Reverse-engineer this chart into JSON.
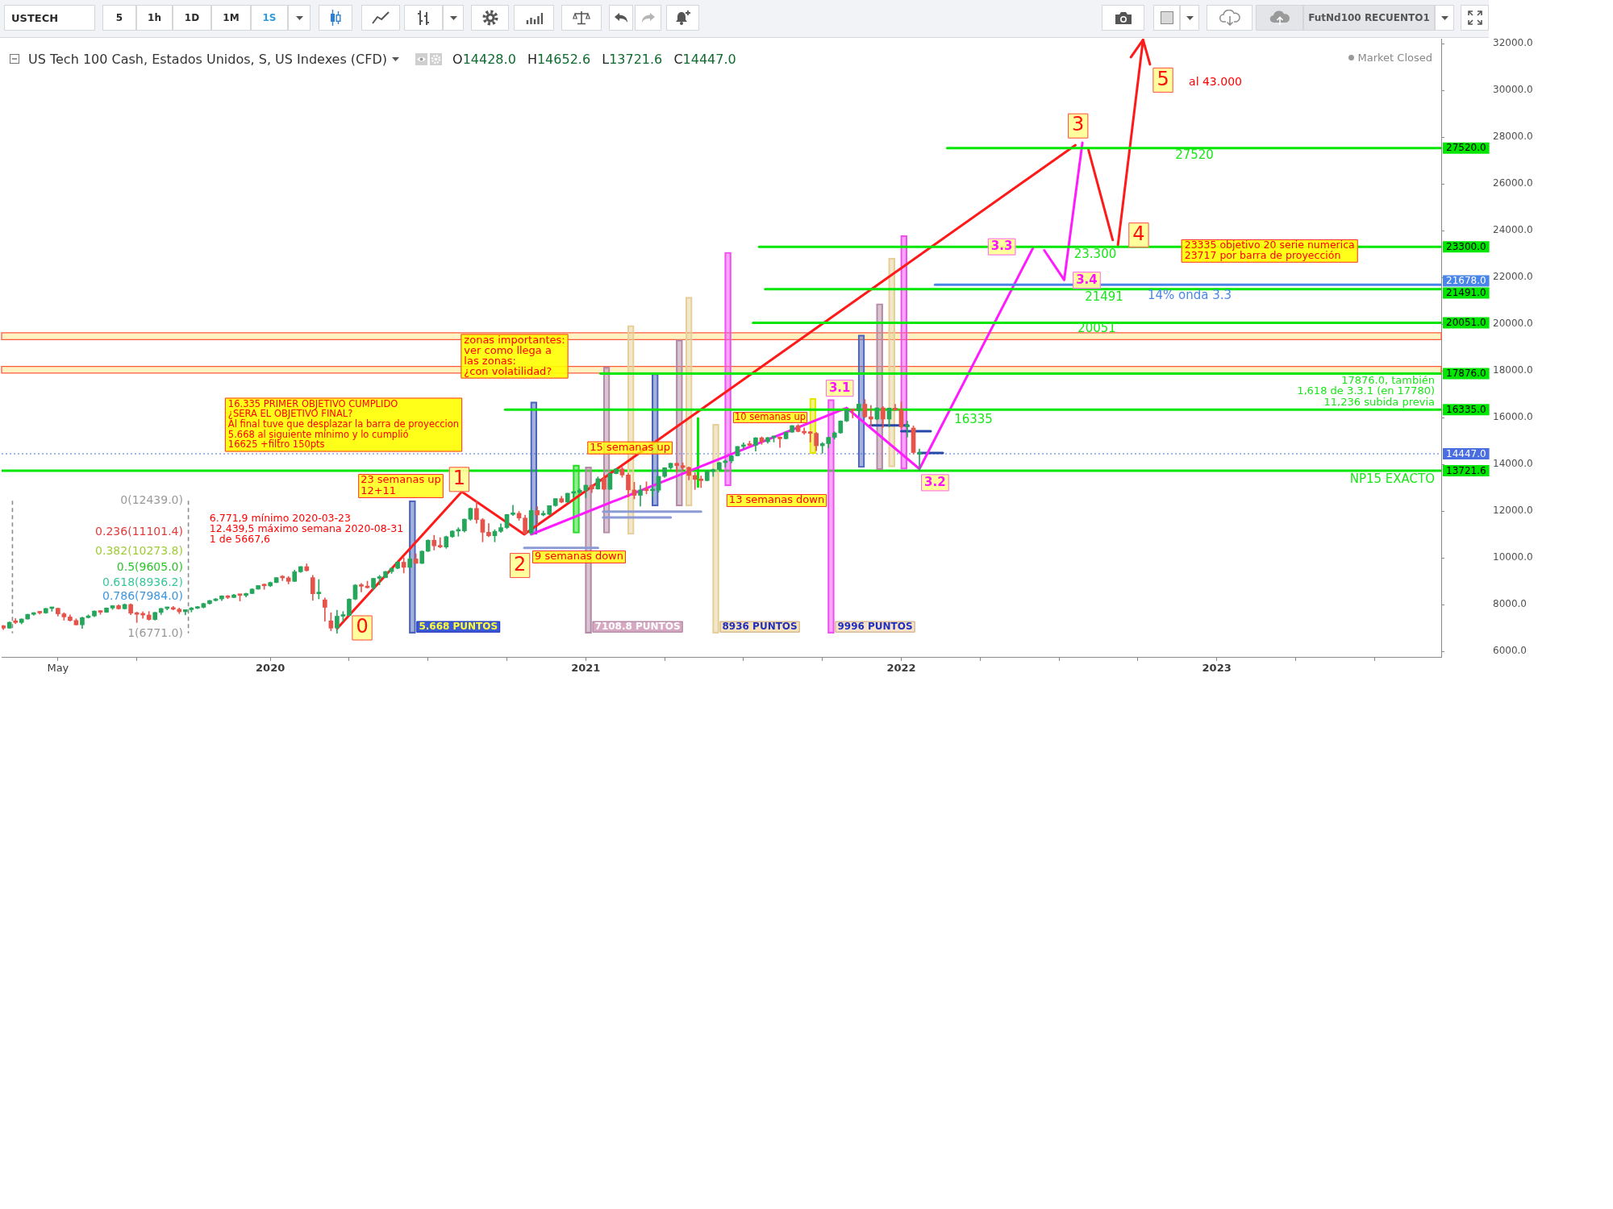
{
  "chart_data": {
    "type": "candlestick",
    "title": "US Tech 100 Cash, Estados Unidos, S, US Indexes (CFD)",
    "subtitle": "O14428.0 H14652.6 L13721.6 C14447.0",
    "xlim": [
      "2019-03-02",
      "2023-09-18"
    ],
    "xticks": [
      {
        "value": "2019-05-06",
        "label": "May"
      },
      {
        "value": "2019-08-05",
        "label": null
      },
      {
        "value": "2020-01-06",
        "label": "2020"
      },
      {
        "value": "2020-04-06",
        "label": null
      },
      {
        "value": "2020-07-06",
        "label": null
      },
      {
        "value": "2020-10-05",
        "label": null
      },
      {
        "value": "2021-01-04",
        "label": "2021"
      },
      {
        "value": "2021-04-05",
        "label": null
      },
      {
        "value": "2021-07-05",
        "label": null
      },
      {
        "value": "2021-10-04",
        "label": null
      },
      {
        "value": "2022-01-03",
        "label": "2022"
      },
      {
        "value": "2022-04-04",
        "label": null
      },
      {
        "value": "2022-07-04",
        "label": null
      },
      {
        "value": "2022-10-03",
        "label": null
      },
      {
        "value": "2023-01-02",
        "label": "2023"
      },
      {
        "value": "2023-04-03",
        "label": null
      },
      {
        "value": "2023-07-03",
        "label": null
      }
    ],
    "ylim": [
      5760,
      32200
    ],
    "yticks": [
      {
        "value": 6000,
        "label": "6000.0"
      },
      {
        "value": 8000,
        "label": "8000.0"
      },
      {
        "value": 10000,
        "label": "10000.0"
      },
      {
        "value": 12000,
        "label": "12000.0"
      },
      {
        "value": 14000,
        "label": "14000.0"
      },
      {
        "value": 16000,
        "label": "16000.0"
      },
      {
        "value": 18000,
        "label": "18000.0"
      },
      {
        "value": 20000,
        "label": "20000.0"
      },
      {
        "value": 22000,
        "label": "22000.0"
      },
      {
        "value": 24000,
        "label": "24000.0"
      },
      {
        "value": 26000,
        "label": "26000.0"
      },
      {
        "value": 28000,
        "label": "28000.0"
      },
      {
        "value": 30000,
        "label": "30000.0"
      },
      {
        "value": 32000,
        "label": "32000.0"
      }
    ],
    "marker": "none",
    "series": [
      {
        "x": [
          "2019-03-04",
          "2019-03-11",
          "2019-03-18",
          "2019-03-25",
          "2019-04-01",
          "2019-04-08",
          "2019-04-15",
          "2019-04-22",
          "2019-04-29",
          "2019-05-06",
          "2019-05-13",
          "2019-05-20",
          "2019-05-27",
          "2019-06-03",
          "2019-06-10",
          "2019-06-17",
          "2019-06-24",
          "2019-07-01",
          "2019-07-08",
          "2019-07-15",
          "2019-07-22",
          "2019-07-29",
          "2019-08-05",
          "2019-08-12",
          "2019-08-19",
          "2019-08-26",
          "2019-09-02",
          "2019-09-09",
          "2019-09-16",
          "2019-09-23",
          "2019-09-30",
          "2019-10-07",
          "2019-10-14",
          "2019-10-21",
          "2019-10-28",
          "2019-11-04",
          "2019-11-11",
          "2019-11-18",
          "2019-11-25",
          "2019-12-02",
          "2019-12-09",
          "2019-12-16",
          "2019-12-23",
          "2019-12-30",
          "2020-01-06",
          "2020-01-13",
          "2020-01-20",
          "2020-01-27",
          "2020-02-03",
          "2020-02-10",
          "2020-02-17",
          "2020-02-24",
          "2020-03-02",
          "2020-03-09",
          "2020-03-16",
          "2020-03-23",
          "2020-03-30",
          "2020-04-06",
          "2020-04-13",
          "2020-04-20",
          "2020-04-27",
          "2020-05-04",
          "2020-05-11",
          "2020-05-18",
          "2020-05-25",
          "2020-06-01",
          "2020-06-08",
          "2020-06-15",
          "2020-06-22",
          "2020-06-29",
          "2020-07-06",
          "2020-07-13",
          "2020-07-20",
          "2020-07-27",
          "2020-08-03",
          "2020-08-10",
          "2020-08-17",
          "2020-08-24",
          "2020-08-31",
          "2020-09-07",
          "2020-09-14",
          "2020-09-21",
          "2020-09-28",
          "2020-10-05",
          "2020-10-12",
          "2020-10-19",
          "2020-10-26",
          "2020-11-02",
          "2020-11-09",
          "2020-11-16",
          "2020-11-23",
          "2020-11-30",
          "2020-12-07",
          "2020-12-14",
          "2020-12-21",
          "2020-12-28",
          "2021-01-04",
          "2021-01-11",
          "2021-01-18",
          "2021-01-25",
          "2021-02-01",
          "2021-02-08",
          "2021-02-15",
          "2021-02-22",
          "2021-03-01",
          "2021-03-08",
          "2021-03-15",
          "2021-03-22",
          "2021-03-29",
          "2021-04-05",
          "2021-04-12",
          "2021-04-19",
          "2021-04-26",
          "2021-05-03",
          "2021-05-10",
          "2021-05-17",
          "2021-05-24",
          "2021-05-31",
          "2021-06-07",
          "2021-06-14",
          "2021-06-21",
          "2021-06-28",
          "2021-07-05",
          "2021-07-12",
          "2021-07-19",
          "2021-07-26",
          "2021-08-02",
          "2021-08-09",
          "2021-08-16",
          "2021-08-23",
          "2021-08-30",
          "2021-09-06",
          "2021-09-13",
          "2021-09-20",
          "2021-09-27",
          "2021-10-04",
          "2021-10-11",
          "2021-10-18",
          "2021-10-25",
          "2021-11-01",
          "2021-11-08",
          "2021-11-15",
          "2021-11-22",
          "2021-11-29",
          "2021-12-06",
          "2021-12-13",
          "2021-12-20",
          "2021-12-27",
          "2022-01-03",
          "2022-01-10",
          "2022-01-17",
          "2022-01-24"
        ],
        "ohlc": [
          [
            7090,
            7110,
            6930,
            6990
          ],
          [
            6990,
            7260,
            6985,
            7240
          ],
          [
            7240,
            7400,
            7180,
            7230
          ],
          [
            7230,
            7390,
            7170,
            7380
          ],
          [
            7380,
            7590,
            7370,
            7580
          ],
          [
            7580,
            7660,
            7540,
            7650
          ],
          [
            7650,
            7700,
            7590,
            7640
          ],
          [
            7640,
            7840,
            7620,
            7830
          ],
          [
            7830,
            7870,
            7710,
            7840
          ],
          [
            7840,
            7850,
            7500,
            7600
          ],
          [
            7600,
            7650,
            7330,
            7470
          ],
          [
            7470,
            7560,
            7290,
            7320
          ],
          [
            7320,
            7390,
            7120,
            7130
          ],
          [
            7130,
            7460,
            6980,
            7440
          ],
          [
            7440,
            7560,
            7420,
            7510
          ],
          [
            7510,
            7730,
            7480,
            7720
          ],
          [
            7720,
            7740,
            7580,
            7670
          ],
          [
            7670,
            7860,
            7660,
            7850
          ],
          [
            7850,
            7960,
            7790,
            7950
          ],
          [
            7950,
            7990,
            7800,
            7820
          ],
          [
            7820,
            8030,
            7800,
            8000
          ],
          [
            8000,
            8030,
            7560,
            7630
          ],
          [
            7630,
            7680,
            7230,
            7580
          ],
          [
            7580,
            7690,
            7410,
            7550
          ],
          [
            7550,
            7700,
            7330,
            7360
          ],
          [
            7360,
            7670,
            7330,
            7660
          ],
          [
            7660,
            7840,
            7570,
            7830
          ],
          [
            7830,
            7890,
            7770,
            7870
          ],
          [
            7870,
            7920,
            7770,
            7800
          ],
          [
            7800,
            7850,
            7610,
            7690
          ],
          [
            7690,
            7780,
            7560,
            7780
          ],
          [
            7780,
            7880,
            7680,
            7840
          ],
          [
            7840,
            7920,
            7820,
            7880
          ],
          [
            7880,
            8060,
            7850,
            8040
          ],
          [
            8040,
            8180,
            8010,
            8170
          ],
          [
            8170,
            8260,
            8150,
            8240
          ],
          [
            8240,
            8380,
            8170,
            8370
          ],
          [
            8370,
            8390,
            8250,
            8300
          ],
          [
            8300,
            8440,
            8290,
            8410
          ],
          [
            8410,
            8420,
            8150,
            8390
          ],
          [
            8390,
            8490,
            8320,
            8470
          ],
          [
            8470,
            8680,
            8460,
            8660
          ],
          [
            8660,
            8820,
            8650,
            8810
          ],
          [
            8810,
            8880,
            8650,
            8800
          ],
          [
            8800,
            8960,
            8760,
            8940
          ],
          [
            8940,
            9160,
            8930,
            9150
          ],
          [
            9150,
            9240,
            9020,
            9140
          ],
          [
            9140,
            9200,
            8880,
            8990
          ],
          [
            8990,
            9470,
            8980,
            9400
          ],
          [
            9400,
            9630,
            9370,
            9620
          ],
          [
            9620,
            9740,
            9430,
            9450
          ],
          [
            9150,
            9250,
            8180,
            8460
          ],
          [
            8460,
            9070,
            8240,
            8530
          ],
          [
            8200,
            8280,
            7290,
            7880
          ],
          [
            7300,
            7650,
            6880,
            6990
          ],
          [
            7000,
            7760,
            6771,
            7500
          ],
          [
            7500,
            7700,
            7280,
            7530
          ],
          [
            7530,
            8250,
            7520,
            8230
          ],
          [
            8230,
            8860,
            8200,
            8830
          ],
          [
            8830,
            8900,
            8540,
            8780
          ],
          [
            8780,
            9000,
            8700,
            8720
          ],
          [
            8720,
            9120,
            8620,
            9120
          ],
          [
            9120,
            9250,
            8840,
            9150
          ],
          [
            9150,
            9420,
            9140,
            9410
          ],
          [
            9410,
            9560,
            9330,
            9550
          ],
          [
            9550,
            9860,
            9530,
            9810
          ],
          [
            9810,
            10000,
            9350,
            9590
          ],
          [
            9590,
            10050,
            9580,
            9950
          ],
          [
            9950,
            10170,
            9760,
            9760
          ],
          [
            9760,
            10300,
            9750,
            10280
          ],
          [
            10280,
            10770,
            10260,
            10750
          ],
          [
            10750,
            10960,
            10330,
            10510
          ],
          [
            10510,
            10860,
            10420,
            10460
          ],
          [
            10460,
            10930,
            10400,
            10900
          ],
          [
            10900,
            11160,
            10870,
            11140
          ],
          [
            11140,
            11290,
            10920,
            11150
          ],
          [
            11150,
            11660,
            11100,
            11650
          ],
          [
            11650,
            12130,
            11600,
            12110
          ],
          [
            12110,
            12439,
            11480,
            11630
          ],
          [
            11630,
            11680,
            10680,
            11090
          ],
          [
            11090,
            11460,
            10900,
            10940
          ],
          [
            10940,
            11200,
            10680,
            11130
          ],
          [
            11130,
            11450,
            11080,
            11290
          ],
          [
            11290,
            11860,
            11240,
            11850
          ],
          [
            11850,
            12250,
            11800,
            11900
          ],
          [
            11900,
            11980,
            11600,
            11700
          ],
          [
            11700,
            11820,
            10990,
            11050
          ],
          [
            11050,
            12110,
            11000,
            12020
          ],
          [
            12020,
            12190,
            11400,
            11830
          ],
          [
            11830,
            12000,
            11790,
            11860
          ],
          [
            11860,
            12230,
            11830,
            12230
          ],
          [
            12230,
            12530,
            12200,
            12530
          ],
          [
            12530,
            12630,
            12350,
            12380
          ],
          [
            12380,
            12760,
            12360,
            12760
          ],
          [
            12760,
            12830,
            12590,
            12800
          ],
          [
            12800,
            12950,
            12750,
            12890
          ],
          [
            12890,
            13120,
            12570,
            13100
          ],
          [
            13100,
            13120,
            12790,
            12940
          ],
          [
            12940,
            13460,
            12930,
            13380
          ],
          [
            13380,
            13570,
            12900,
            12930
          ],
          [
            12930,
            13620,
            12920,
            13600
          ],
          [
            13600,
            13800,
            13590,
            13800
          ],
          [
            13800,
            13879.8,
            13440,
            13540
          ],
          [
            13540,
            13600,
            12600,
            12900
          ],
          [
            12900,
            13230,
            12520,
            12670
          ],
          [
            12670,
            13100,
            12210,
            12900
          ],
          [
            12900,
            13250,
            12730,
            12870
          ],
          [
            12870,
            13080,
            12610,
            12890
          ],
          [
            12890,
            13480,
            12800,
            13480
          ],
          [
            13480,
            13860,
            13430,
            13850
          ],
          [
            13850,
            14050,
            13780,
            14040
          ],
          [
            14040,
            14060,
            13680,
            13940
          ],
          [
            13940,
            14060,
            13750,
            13860
          ],
          [
            13860,
            13890,
            13330,
            13520
          ],
          [
            13520,
            13640,
            12920,
            13350
          ],
          [
            13350,
            13500,
            13000,
            13300
          ],
          [
            13300,
            13740,
            13290,
            13690
          ],
          [
            13690,
            13800,
            13480,
            13770
          ],
          [
            13770,
            14080,
            13720,
            14070
          ],
          [
            14070,
            14190,
            13880,
            14140
          ],
          [
            14140,
            14370,
            14050,
            14360
          ],
          [
            14360,
            14760,
            14350,
            14760
          ],
          [
            14760,
            14920,
            14650,
            14830
          ],
          [
            14830,
            14990,
            14780,
            14810
          ],
          [
            14810,
            15140,
            14560,
            15130
          ],
          [
            15130,
            15170,
            14850,
            14960
          ],
          [
            14960,
            15150,
            14900,
            15140
          ],
          [
            15140,
            15160,
            14950,
            15150
          ],
          [
            15150,
            15180,
            14720,
            15090
          ],
          [
            15090,
            15380,
            15080,
            15370
          ],
          [
            15370,
            15660,
            15360,
            15650
          ],
          [
            15650,
            15700,
            15380,
            15400
          ],
          [
            15400,
            15560,
            15280,
            15340
          ],
          [
            15340,
            15400,
            14950,
            15320
          ],
          [
            15320,
            15360,
            14580,
            14790
          ],
          [
            14790,
            14930,
            14470,
            14880
          ],
          [
            14880,
            15160,
            14700,
            15150
          ],
          [
            15150,
            15390,
            15070,
            15340
          ],
          [
            15340,
            15860,
            15320,
            15850
          ],
          [
            15850,
            16340,
            15820,
            16320
          ],
          [
            16320,
            16360,
            15980,
            16290
          ],
          [
            16290,
            16600,
            16200,
            16570
          ],
          [
            16570,
            16765,
            15990,
            16030
          ],
          [
            16030,
            16510,
            15630,
            15930
          ],
          [
            15930,
            16420,
            15900,
            16410
          ],
          [
            16410,
            16470,
            15580,
            15930
          ],
          [
            15930,
            16410,
            15600,
            16400
          ],
          [
            16400,
            16560,
            16300,
            16320
          ],
          [
            16320,
            16670,
            15500,
            15600
          ],
          [
            15600,
            15850,
            15160,
            15610
          ],
          [
            15550,
            15640,
            14440,
            14500
          ],
          [
            14428,
            14652.6,
            13721.6,
            14447
          ]
        ],
        "colors": [
          "#e5534b",
          "#26a65b",
          "#e5534b",
          "#26a65b",
          "#26a65b",
          "#26a65b",
          "#e5534b",
          "#26a65b",
          "#26a65b",
          "#e5534b",
          "#e5534b",
          "#e5534b",
          "#e5534b",
          "#26a65b",
          "#26a65b",
          "#26a65b",
          "#e5534b",
          "#26a65b",
          "#26a65b",
          "#e5534b",
          "#26a65b",
          "#e5534b",
          "#e5534b",
          "#e5534b",
          "#e5534b",
          "#26a65b",
          "#26a65b",
          "#26a65b",
          "#e5534b",
          "#e5534b",
          "#26a65b",
          "#26a65b",
          "#26a65b",
          "#26a65b",
          "#26a65b",
          "#26a65b",
          "#26a65b",
          "#e5534b",
          "#26a65b",
          "#e5534b",
          "#26a65b",
          "#26a65b",
          "#26a65b",
          "#e5534b",
          "#26a65b",
          "#26a65b",
          "#e5534b",
          "#e5534b",
          "#26a65b",
          "#26a65b",
          "#e5534b",
          "#e5534b",
          "#26a65b",
          "#e5534b",
          "#e5534b",
          "#26a65b",
          "#26a65b",
          "#26a65b",
          "#26a65b",
          "#e5534b",
          "#e5534b",
          "#26a65b",
          "#26a65b",
          "#26a65b",
          "#26a65b",
          "#26a65b",
          "#e5534b",
          "#26a65b",
          "#e5534b",
          "#26a65b",
          "#26a65b",
          "#e5534b",
          "#e5534b",
          "#26a65b",
          "#26a65b",
          "#26a65b",
          "#26a65b",
          "#26a65b",
          "#e5534b",
          "#e5534b",
          "#e5534b",
          "#26a65b",
          "#26a65b",
          "#26a65b",
          "#26a65b",
          "#e5534b",
          "#e5534b",
          "#26a65b",
          "#e5534b",
          "#26a65b",
          "#26a65b",
          "#26a65b",
          "#e5534b",
          "#26a65b",
          "#26a65b",
          "#26a65b",
          "#26a65b",
          "#e5534b",
          "#26a65b",
          "#e5534b",
          "#26a65b",
          "#26a65b",
          "#e5534b",
          "#e5534b",
          "#e5534b",
          "#26a65b",
          "#e5534b",
          "#26a65b",
          "#26a65b",
          "#26a65b",
          "#26a65b",
          "#e5534b",
          "#e5534b",
          "#e5534b",
          "#e5534b",
          "#e5534b",
          "#26a65b",
          "#26a65b",
          "#26a65b",
          "#26a65b",
          "#26a65b",
          "#26a65b",
          "#26a65b",
          "#e5534b",
          "#26a65b",
          "#e5534b",
          "#26a65b",
          "#26a65b",
          "#e5534b",
          "#26a65b",
          "#26a65b",
          "#e5534b",
          "#e5534b",
          "#e5534b",
          "#e5534b",
          "#26a65b",
          "#26a65b",
          "#26a65b",
          "#26a65b",
          "#26a65b",
          "#e5534b",
          "#26a65b",
          "#e5534b",
          "#e5534b",
          "#26a65b",
          "#e5534b",
          "#26a65b",
          "#e5534b",
          "#e5534b",
          "#26a65b",
          "#e5534b",
          "#26a65b"
        ]
      },
      {
        "type": "bar",
        "x": [
          "2020-06-18",
          "2020-11-05",
          "2020-12-24",
          "2021-01-07",
          "2021-01-28",
          "2021-02-25",
          "2021-03-25",
          "2021-04-22",
          "2021-05-03",
          "2021-06-03",
          "2021-06-17",
          "2021-09-23",
          "2021-10-14",
          "2021-11-18",
          "2021-12-09",
          "2021-12-23",
          "2022-01-06"
        ],
        "base": [
          6771,
          11000,
          11050,
          6771,
          11050,
          11000,
          12210,
          12210,
          12210,
          6771,
          13070,
          14460,
          6771,
          13860,
          13760,
          13880,
          13790
        ],
        "values": [
          5668,
          5668,
          2920,
          7108.8,
          7108.8,
          8936,
          5668,
          7108.8,
          8936,
          8936,
          9996,
          2360,
          9996,
          5668,
          7108.8,
          8936,
          9996
        ],
        "colors": [
          "#4c64bc",
          "#4c64bc",
          "#22dd22",
          "#b48aa6",
          "#b48aa6",
          "#e6cf98",
          "#4c64bc",
          "#b48aa6",
          "#e6cf98",
          "#e6cf98",
          "#f050f0",
          "#e6e600",
          "#f050f0",
          "#4c64bc",
          "#b48aa6",
          "#e6cf98",
          "#f050f0"
        ]
      },
      {
        "type": "line",
        "x": [
          "2022-02-25",
          "2023-09-18"
        ],
        "values": [
          27520,
          27520
        ],
        "color": "#00e600",
        "value_labels": [
          null,
          "27520.0"
        ]
      },
      {
        "type": "line",
        "x": [
          "2021-07-23",
          "2023-09-18"
        ],
        "values": [
          23300,
          23300
        ],
        "color": "#00e600",
        "value_labels": [
          null,
          "23300.0"
        ]
      },
      {
        "type": "line",
        "x": [
          "2022-02-11",
          "2023-09-18"
        ],
        "values": [
          21678,
          21678
        ],
        "color": "#4a86e8",
        "value_labels": [
          null,
          "21678.0"
        ]
      },
      {
        "type": "line",
        "x": [
          "2021-07-30",
          "2023-09-18"
        ],
        "values": [
          21491,
          21491
        ],
        "color": "#00e600",
        "value_labels": [
          null,
          "21491.0"
        ]
      },
      {
        "type": "line",
        "x": [
          "2021-07-16",
          "2023-09-18"
        ],
        "values": [
          20051,
          20051
        ],
        "color": "#00e600",
        "value_labels": [
          null,
          "20051.0"
        ]
      },
      {
        "type": "line",
        "x": [
          "2021-01-21",
          "2023-09-18"
        ],
        "values": [
          17876,
          17876
        ],
        "color": "#00e600",
        "value_labels": [
          null,
          "17876.0"
        ]
      },
      {
        "type": "line",
        "x": [
          "2020-10-03",
          "2023-09-18"
        ],
        "values": [
          16335,
          16335
        ],
        "color": "#00e600",
        "value_labels": [
          null,
          "16335.0"
        ]
      },
      {
        "type": "line",
        "x": [
          "2020-03-23",
          "2020-08-14",
          "2020-10-25",
          "2022-07-23"
        ],
        "values": [
          6970,
          12830,
          11000,
          27650
        ],
        "color": "#ff1a1a"
      },
      {
        "type": "line",
        "x": [
          "2022-08-07",
          "2022-09-04"
        ],
        "values": [
          27450,
          23590
        ],
        "color": "#ff1a1a"
      },
      {
        "type": "line",
        "x": [
          "2022-09-10",
          "2022-10-09"
        ],
        "values": [
          23380,
          32150
        ],
        "color": "#ff1a1a"
      },
      {
        "type": "line",
        "x": [
          "2022-09-25",
          "2022-10-09",
          "2022-10-17"
        ],
        "values": [
          31410,
          32150,
          31100
        ],
        "color": "#ff1a1a"
      },
      {
        "type": "line",
        "x": [
          "2020-11-02",
          "2021-11-01",
          "2022-01-24",
          "2022-06-04"
        ],
        "values": [
          11000,
          16410,
          13800,
          23250
        ],
        "color": "#ff1aff"
      },
      {
        "type": "line",
        "x": [
          "2022-06-17",
          "2022-07-10",
          "2022-07-31"
        ],
        "values": [
          23150,
          21880,
          27750
        ],
        "color": "#ff1aff"
      },
      {
        "type": "line",
        "x": [
          "2021-05-13T12:00",
          "2021-05-13T12:00"
        ],
        "values": [
          15960,
          13040
        ],
        "color": "#00e600"
      },
      {
        "type": "line",
        "x": [
          "2019-03-14T12:00",
          "2019-03-14T12:00"
        ],
        "values": [
          12439,
          6771
        ],
        "color": "#8c8c8c",
        "line_style": "dashed"
      },
      {
        "type": "line",
        "x": [
          "2019-10-03T12:00",
          "2019-10-03T12:00"
        ],
        "values": [
          12439,
          6771
        ],
        "color": "#8c8c8c",
        "line_style": "dashed"
      },
      {
        "type": "line",
        "x": [
          "2021-01-24",
          "2021-05-17"
        ],
        "values": [
          11970,
          11970
        ],
        "color": "#8c9ad6"
      },
      {
        "type": "line",
        "x": [
          "2021-01-24",
          "2021-04-12"
        ],
        "values": [
          11720,
          11720
        ],
        "color": "#8c9ad6"
      },
      {
        "type": "line",
        "x": [
          "2020-10-25",
          "2021-01-18"
        ],
        "values": [
          10420,
          10420
        ],
        "color": "#8c9ad6"
      },
      {
        "type": "line",
        "x": [
          "2021-11-28",
          "2022-01-11"
        ],
        "values": [
          15660,
          15660
        ],
        "color": "#2848a8"
      },
      {
        "type": "line",
        "x": [
          "2022-01-03",
          "2022-02-06"
        ],
        "values": [
          15410,
          15410
        ],
        "color": "#2848a8"
      },
      {
        "type": "line",
        "x": [
          "2022-01-23",
          "2022-02-20"
        ],
        "values": [
          14480,
          14480
        ],
        "color": "#2848a8"
      }
    ],
    "ref_lines": [
      {
        "axis": "y",
        "value": 14447,
        "label": "14447.0",
        "color": "#4a6ee0",
        "line_style": "dotted"
      },
      {
        "axis": "y",
        "value": 13721.6,
        "label": "13721.6",
        "color": "#00e600"
      }
    ],
    "bands": [
      {
        "axis": "y",
        "from": 19330,
        "to": 19620,
        "color": "#fff3c4"
      },
      {
        "axis": "y",
        "from": 17900,
        "to": 18180,
        "color": "#fff3c4"
      }
    ],
    "annotations": [
      "USTECH",
      "5",
      "1h",
      "1D",
      "1M",
      "1S",
      "FutNd100 RECUENTO1",
      "Market Closed",
      "16.335 PRIMER OBJETIVO CUMPLIDO\n¿SERA EL OBJETIVO FINAL?\nAl final tuve que desplazar la barra de proyeccion\n5.668 al siguiente mínimo y lo cumplió\n16625 +filtro 150pts",
      "zonas importantes:\nver como llega a\nlas zonas:\n¿con volatilidad?",
      "9 semanas down",
      "13 semanas down",
      "6.771,9 mínimo 2020-03-23\n12.439,5 máximo semana 2020-08-31\n1 de 5667,6",
      "al 43.000",
      "27520",
      "23.300",
      "21491",
      "20051",
      "16335",
      "17876.0, también\n1,618 de 3.3.1 (en 17780)\n11,236 subida previa",
      "NP15 EXACTO",
      "14% onda 3.3",
      "0(12439.0)",
      "0.236(11101.4)",
      "0.382(10273.8)",
      "0.5(9605.0)",
      "0.618(8936.2)",
      "0.786(7984.0)",
      "1(6771.0)",
      "23 semanas up\n12+11",
      "10 semanas up",
      {
        "text": "0",
        "x": "2020-04-21",
        "y": 7000
      },
      {
        "text": "1",
        "x": "2020-08-11",
        "y": 13350
      },
      {
        "text": "2",
        "x": "2020-10-20",
        "y": 9670
      },
      {
        "text": "3",
        "x": "2022-07-26",
        "y": 28470
      },
      {
        "text": "4",
        "x": "2022-10-04",
        "y": 23800
      },
      {
        "text": "5",
        "x": "2022-11-01",
        "y": 30430
      },
      {
        "text": "3.1",
        "x": "2021-10-24",
        "y": 17250
      },
      {
        "text": "3.2",
        "x": "2022-02-11",
        "y": 13210
      },
      {
        "text": "3.3",
        "x": "2022-04-29",
        "y": 23300
      },
      {
        "text": "3.4",
        "x": "2022-08-05",
        "y": 21870
      },
      {
        "text": "15 semanas up",
        "x": "2021-02-24",
        "y": 14700
      },
      {
        "text": "23335 objetivo 20 serie numerica\n23717 por barra de proyección",
        "x": "2023-03-04",
        "y": 23120
      },
      {
        "text": "5.668 PUNTOS",
        "x": "2020-06-18",
        "y": 6771
      },
      {
        "text": "7108.8 PUNTOS",
        "x": "2021-01-07",
        "y": 6771
      },
      {
        "text": "8936 PUNTOS",
        "x": "2021-06-03",
        "y": 6771
      },
      {
        "text": "9996 PUNTOS",
        "x": "2021-10-14",
        "y": 6771
      }
    ]
  }
}
